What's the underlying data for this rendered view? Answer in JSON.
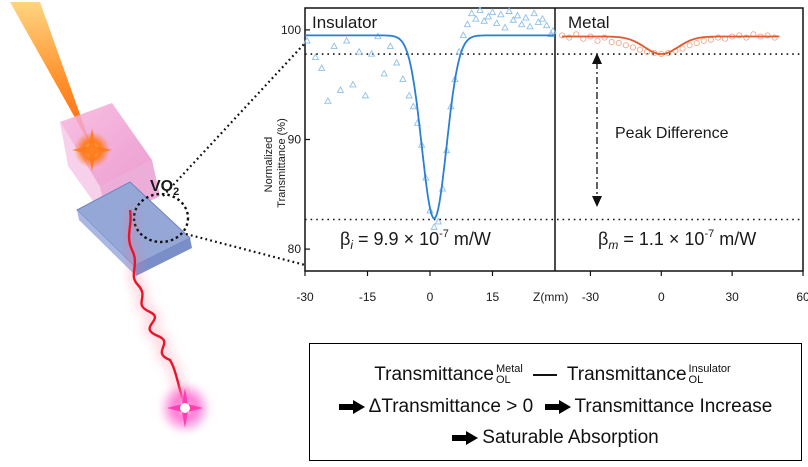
{
  "illustration": {
    "vo2_label": "VO",
    "vo2_subscript": "2"
  },
  "chart_data": [
    {
      "type": "scatter",
      "panel_label": "Insulator",
      "title": "",
      "xlabel": "Z(mm)",
      "ylabel": "Normalized Transmittance (%)",
      "ylabel_lines": [
        "Normalized",
        "Transmittance (%)"
      ],
      "xlim": [
        -30,
        30
      ],
      "ylim": [
        78,
        102
      ],
      "xticks": [
        -30,
        -15,
        0,
        15
      ],
      "yticks": [
        100,
        90,
        80
      ],
      "xtick_labels": [
        "-30",
        "-15",
        "0",
        "15"
      ],
      "ytick_labels": [
        "100",
        "90",
        "80"
      ],
      "legend": "none",
      "grid": false,
      "series": [
        {
          "kind": "fit",
          "color": "#2a7fd2",
          "curve": {
            "baseline": 99.5,
            "depth": 16.7,
            "center": 1,
            "width": 4.2
          }
        },
        {
          "kind": "markers",
          "marker": "triangle",
          "color": "#8fc0ea",
          "x": [
            -29.5,
            -27.5,
            -26,
            -24.5,
            -23,
            -21.5,
            -20,
            -18.5,
            -17,
            -15.5,
            -14,
            -12.5,
            -11,
            -9.5,
            -8,
            -6.5,
            -5,
            -4,
            -3,
            -2,
            -1,
            0,
            1,
            2,
            3,
            4,
            5,
            6,
            7,
            8,
            9,
            10,
            11,
            12,
            13,
            14,
            15,
            16,
            17,
            18,
            19,
            20,
            21,
            22,
            23,
            24,
            25,
            26,
            27,
            28,
            29,
            29.5
          ],
          "y": [
            99.0,
            97.5,
            96.5,
            93.5,
            98.5,
            94.5,
            99.0,
            95.0,
            98.0,
            94.0,
            97.8,
            99.4,
            96.0,
            98.5,
            97.0,
            95.5,
            94.0,
            93.0,
            91.5,
            89.5,
            86.5,
            83.5,
            82.0,
            82.5,
            85.5,
            89.0,
            93.0,
            95.5,
            98.0,
            99.5,
            100.5,
            101.5,
            101.0,
            101.8,
            100.8,
            101.2,
            101.6,
            100.6,
            101.4,
            100.2,
            101.7,
            100.9,
            101.3,
            100.5,
            101.1,
            100.3,
            101.5,
            100.7,
            101.0,
            100.4,
            99.6,
            99.9
          ]
        }
      ],
      "reference_lines": [
        97.8,
        82.7
      ],
      "annotation": {
        "beta_symbol": "β",
        "beta_subscript": "i",
        "beta_eq": " = 9.9 × 10",
        "beta_exp": "-7",
        "beta_unit": " m/W"
      }
    },
    {
      "type": "scatter",
      "panel_label": "Metal",
      "title": "",
      "xlabel": "",
      "ylabel": "",
      "xlim": [
        -45,
        60
      ],
      "ylim": [
        78,
        102
      ],
      "xticks": [
        -30,
        0,
        30,
        60
      ],
      "xtick_labels": [
        "-30",
        "0",
        "30",
        "60"
      ],
      "legend": "none",
      "grid": false,
      "series": [
        {
          "kind": "fit",
          "color": "#e05a2a",
          "curve": {
            "baseline": 99.4,
            "depth": 1.6,
            "center": 0,
            "width": 10
          }
        },
        {
          "kind": "markers",
          "marker": "circle",
          "color": "#f0a98c",
          "x": [
            -42,
            -39,
            -36,
            -33,
            -30,
            -27,
            -24,
            -21,
            -18,
            -15,
            -12,
            -9,
            -6,
            -3,
            0,
            3,
            6,
            9,
            12,
            15,
            18,
            21,
            24,
            27,
            30,
            33,
            36,
            39,
            42,
            45,
            48
          ],
          "y": [
            99.5,
            99.3,
            99.6,
            99.2,
            99.4,
            99.0,
            99.3,
            98.9,
            98.8,
            98.6,
            98.4,
            98.2,
            98.0,
            97.9,
            97.8,
            97.9,
            98.1,
            98.3,
            98.6,
            98.8,
            99.0,
            99.1,
            99.3,
            99.2,
            99.4,
            99.5,
            99.3,
            99.6,
            99.4,
            99.5,
            99.3
          ]
        }
      ],
      "reference_lines": [
        97.8,
        82.7
      ],
      "peak_label": "Peak Difference",
      "annotation": {
        "beta_symbol": "β",
        "beta_subscript": "m",
        "beta_eq": " = 1.1 × 10",
        "beta_exp": "-7",
        "beta_unit": " m/W"
      }
    }
  ],
  "formula_box": {
    "line1_left": "Transmittance",
    "line1_left_sup": "Metal",
    "line1_left_sub": "OL",
    "line1_right": "Transmittance",
    "line1_right_sup": "Insulator",
    "line1_right_sub": "OL",
    "line2_a": "ΔTransmittance > 0",
    "line2_b": "Transmittance Increase",
    "line3": "Saturable Absorption"
  },
  "colors": {
    "insulator_fit": "#2a7fd2",
    "insulator_markers": "#8fc0ea",
    "metal_fit": "#e05a2a",
    "metal_markers": "#f0a98c",
    "laser": "#e8152a"
  }
}
